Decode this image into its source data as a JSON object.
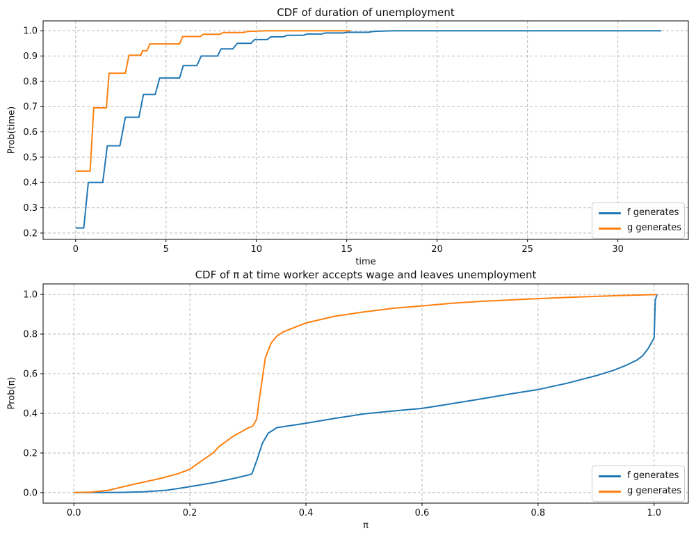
{
  "figure": {
    "background": "#ffffff"
  },
  "chart_data": [
    {
      "type": "line",
      "title": "CDF of duration of unemployment",
      "xlabel": "time",
      "ylabel": "Prob(time)",
      "xlim": [
        -1.8,
        33.9
      ],
      "ylim": [
        0.175,
        1.039
      ],
      "xtick_labels": [
        "0",
        "5",
        "10",
        "15",
        "20",
        "25",
        "30"
      ],
      "ytick_labels": [
        "0.2",
        "0.3",
        "0.4",
        "0.5",
        "0.6",
        "0.7",
        "0.8",
        "0.9",
        "1.0"
      ],
      "grid": true,
      "grid_color": "#b8b8b8",
      "legend_position": "lower right",
      "series": [
        {
          "name": "f generates",
          "color": "#1f77b4",
          "points": [
            [
              0,
              0.22
            ],
            [
              0.45,
              0.22
            ],
            [
              0.7,
              0.4
            ],
            [
              1.5,
              0.4
            ],
            [
              1.75,
              0.545
            ],
            [
              2.45,
              0.545
            ],
            [
              2.75,
              0.658
            ],
            [
              3.5,
              0.658
            ],
            [
              3.75,
              0.748
            ],
            [
              4.4,
              0.748
            ],
            [
              4.65,
              0.813
            ],
            [
              5.75,
              0.813
            ],
            [
              5.95,
              0.862
            ],
            [
              6.7,
              0.862
            ],
            [
              6.95,
              0.9
            ],
            [
              7.85,
              0.9
            ],
            [
              8.05,
              0.928
            ],
            [
              8.7,
              0.928
            ],
            [
              8.95,
              0.95
            ],
            [
              9.7,
              0.95
            ],
            [
              9.9,
              0.965
            ],
            [
              10.6,
              0.965
            ],
            [
              10.8,
              0.976
            ],
            [
              11.5,
              0.976
            ],
            [
              11.7,
              0.982
            ],
            [
              12.6,
              0.982
            ],
            [
              12.8,
              0.987
            ],
            [
              13.6,
              0.987
            ],
            [
              13.8,
              0.991
            ],
            [
              14.8,
              0.991
            ],
            [
              15.05,
              0.994
            ],
            [
              16.2,
              0.994
            ],
            [
              16.45,
              0.997
            ],
            [
              17.2,
              0.999
            ],
            [
              17.6,
              1.0
            ],
            [
              32.4,
              1.0
            ]
          ]
        },
        {
          "name": "g generates",
          "color": "#ff7f0e",
          "points": [
            [
              0,
              0.445
            ],
            [
              0.8,
              0.445
            ],
            [
              1.0,
              0.695
            ],
            [
              1.7,
              0.695
            ],
            [
              1.85,
              0.832
            ],
            [
              2.75,
              0.832
            ],
            [
              2.95,
              0.903
            ],
            [
              3.6,
              0.903
            ],
            [
              3.7,
              0.921
            ],
            [
              3.95,
              0.921
            ],
            [
              4.1,
              0.948
            ],
            [
              5.75,
              0.948
            ],
            [
              5.92,
              0.977
            ],
            [
              6.9,
              0.977
            ],
            [
              7.05,
              0.986
            ],
            [
              8.0,
              0.986
            ],
            [
              8.15,
              0.993
            ],
            [
              9.3,
              0.993
            ],
            [
              9.5,
              0.997
            ],
            [
              10.5,
              1.0
            ],
            [
              15.2,
              1.0
            ]
          ]
        }
      ]
    },
    {
      "type": "line",
      "title": "CDF of π at time worker accepts wage and leaves unemployment",
      "xlabel": "π",
      "ylabel": "Prob(π)",
      "xlim": [
        -0.053,
        1.059
      ],
      "ylim": [
        -0.053,
        1.053
      ],
      "xtick_labels": [
        "0.0",
        "0.2",
        "0.4",
        "0.6",
        "0.8",
        "1.0"
      ],
      "ytick_labels": [
        "0.0",
        "0.2",
        "0.4",
        "0.6",
        "0.8",
        "1.0"
      ],
      "grid": true,
      "grid_color": "#b8b8b8",
      "legend_position": "lower right",
      "series": [
        {
          "name": "f generates",
          "color": "#1f77b4",
          "points": [
            [
              0,
              0
            ],
            [
              0.08,
              0.001
            ],
            [
              0.12,
              0.004
            ],
            [
              0.16,
              0.012
            ],
            [
              0.2,
              0.03
            ],
            [
              0.24,
              0.05
            ],
            [
              0.27,
              0.068
            ],
            [
              0.3,
              0.088
            ],
            [
              0.307,
              0.095
            ],
            [
              0.315,
              0.16
            ],
            [
              0.325,
              0.25
            ],
            [
              0.335,
              0.3
            ],
            [
              0.35,
              0.328
            ],
            [
              0.4,
              0.35
            ],
            [
              0.45,
              0.375
            ],
            [
              0.5,
              0.397
            ],
            [
              0.55,
              0.412
            ],
            [
              0.6,
              0.425
            ],
            [
              0.65,
              0.448
            ],
            [
              0.7,
              0.472
            ],
            [
              0.75,
              0.497
            ],
            [
              0.8,
              0.52
            ],
            [
              0.85,
              0.552
            ],
            [
              0.9,
              0.59
            ],
            [
              0.93,
              0.617
            ],
            [
              0.95,
              0.64
            ],
            [
              0.97,
              0.668
            ],
            [
              0.98,
              0.69
            ],
            [
              0.99,
              0.728
            ],
            [
              0.995,
              0.755
            ],
            [
              1.0,
              0.78
            ],
            [
              1.002,
              0.97
            ],
            [
              1.005,
              1.0
            ]
          ]
        },
        {
          "name": "g generates",
          "color": "#ff7f0e",
          "points": [
            [
              0,
              0
            ],
            [
              0.03,
              0.003
            ],
            [
              0.06,
              0.012
            ],
            [
              0.1,
              0.04
            ],
            [
              0.15,
              0.072
            ],
            [
              0.18,
              0.096
            ],
            [
              0.2,
              0.118
            ],
            [
              0.215,
              0.15
            ],
            [
              0.24,
              0.2
            ],
            [
              0.25,
              0.232
            ],
            [
              0.275,
              0.285
            ],
            [
              0.3,
              0.326
            ],
            [
              0.308,
              0.335
            ],
            [
              0.315,
              0.37
            ],
            [
              0.32,
              0.48
            ],
            [
              0.33,
              0.68
            ],
            [
              0.34,
              0.755
            ],
            [
              0.35,
              0.79
            ],
            [
              0.36,
              0.81
            ],
            [
              0.4,
              0.856
            ],
            [
              0.45,
              0.89
            ],
            [
              0.5,
              0.912
            ],
            [
              0.55,
              0.93
            ],
            [
              0.6,
              0.942
            ],
            [
              0.65,
              0.955
            ],
            [
              0.7,
              0.965
            ],
            [
              0.75,
              0.972
            ],
            [
              0.8,
              0.979
            ],
            [
              0.85,
              0.985
            ],
            [
              0.9,
              0.99
            ],
            [
              0.95,
              0.995
            ],
            [
              1.0,
              0.999
            ],
            [
              1.005,
              1.0
            ]
          ]
        }
      ]
    }
  ]
}
